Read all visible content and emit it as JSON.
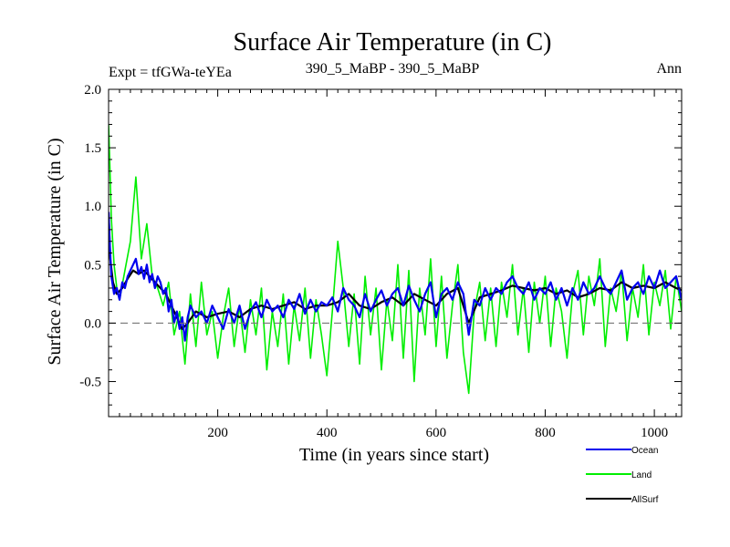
{
  "chart_data": {
    "type": "line",
    "title": "Surface Air Temperature (in C)",
    "subtitle_left": "Expt = tfGWa-teYEa",
    "subtitle_center": "390_5_MaBP - 390_5_MaBP",
    "subtitle_right": "Ann",
    "xlabel": "Time (in years since start)",
    "ylabel": "Surface Air Temperature (in C)",
    "xlim": [
      0,
      1050
    ],
    "ylim": [
      -0.8,
      2.0
    ],
    "xticks": [
      200,
      400,
      600,
      800,
      1000
    ],
    "xtick_labels": [
      "200",
      "400",
      "600",
      "800",
      "1000"
    ],
    "yticks": [
      -0.5,
      0.0,
      0.5,
      1.0,
      1.5,
      2.0
    ],
    "ytick_labels": [
      "-0.5",
      "0.0",
      "0.5",
      "1.0",
      "1.5",
      "2.0"
    ],
    "reference_line": 0.0,
    "grid": false,
    "legend_position": "bottom-right",
    "series": [
      {
        "name": "Land",
        "color": "#00ee00",
        "x": [
          0,
          2,
          5,
          10,
          15,
          20,
          30,
          40,
          50,
          60,
          70,
          80,
          90,
          100,
          110,
          120,
          130,
          140,
          150,
          160,
          170,
          180,
          190,
          200,
          210,
          220,
          230,
          240,
          250,
          260,
          270,
          280,
          290,
          300,
          310,
          320,
          330,
          340,
          350,
          360,
          370,
          380,
          390,
          400,
          410,
          420,
          430,
          440,
          450,
          460,
          470,
          480,
          490,
          500,
          510,
          520,
          530,
          540,
          550,
          560,
          570,
          580,
          590,
          600,
          610,
          620,
          630,
          640,
          650,
          660,
          670,
          680,
          690,
          700,
          710,
          720,
          730,
          740,
          750,
          760,
          770,
          780,
          790,
          800,
          810,
          820,
          830,
          840,
          850,
          860,
          870,
          880,
          890,
          900,
          910,
          920,
          930,
          940,
          950,
          960,
          970,
          980,
          990,
          1000,
          1010,
          1020,
          1030,
          1040,
          1050
        ],
        "values": [
          1.7,
          1.4,
          0.9,
          0.5,
          0.3,
          0.2,
          0.45,
          0.7,
          1.25,
          0.55,
          0.85,
          0.4,
          0.3,
          0.15,
          0.35,
          -0.1,
          0.1,
          -0.35,
          0.25,
          -0.2,
          0.35,
          -0.1,
          0.1,
          -0.3,
          0.05,
          0.3,
          -0.2,
          0.15,
          -0.25,
          0.2,
          -0.1,
          0.3,
          -0.4,
          0.1,
          -0.2,
          0.25,
          -0.35,
          0.15,
          -0.15,
          0.3,
          -0.3,
          0.2,
          -0.1,
          -0.45,
          0.1,
          0.7,
          0.3,
          -0.2,
          0.25,
          -0.35,
          0.4,
          -0.1,
          0.3,
          -0.4,
          0.2,
          -0.15,
          0.5,
          -0.3,
          0.45,
          -0.5,
          0.3,
          -0.1,
          0.55,
          -0.2,
          0.4,
          -0.3,
          0.15,
          0.5,
          -0.25,
          -0.6,
          0.1,
          0.35,
          -0.15,
          0.3,
          -0.2,
          0.35,
          0.05,
          0.5,
          -0.1,
          0.3,
          -0.25,
          0.35,
          0.0,
          0.4,
          -0.2,
          0.3,
          0.1,
          -0.3,
          0.25,
          0.45,
          -0.1,
          0.4,
          0.15,
          0.55,
          -0.2,
          0.3,
          0.1,
          0.45,
          -0.15,
          0.3,
          0.05,
          0.5,
          -0.1,
          0.35,
          0.15,
          0.45,
          -0.05,
          0.4,
          0.1
        ]
      },
      {
        "name": "AllSurf",
        "color": "#000000",
        "x": [
          0,
          3,
          8,
          15,
          25,
          35,
          45,
          55,
          65,
          75,
          85,
          95,
          105,
          115,
          125,
          135,
          145,
          160,
          180,
          200,
          220,
          240,
          260,
          280,
          300,
          320,
          340,
          360,
          380,
          400,
          420,
          440,
          460,
          480,
          500,
          520,
          540,
          560,
          580,
          600,
          620,
          640,
          660,
          680,
          700,
          720,
          740,
          760,
          780,
          800,
          820,
          840,
          860,
          880,
          900,
          920,
          940,
          960,
          980,
          1000,
          1020,
          1040,
          1050
        ],
        "values": [
          0.95,
          0.55,
          0.35,
          0.25,
          0.3,
          0.38,
          0.45,
          0.42,
          0.45,
          0.4,
          0.35,
          0.3,
          0.25,
          0.15,
          0.05,
          -0.05,
          0.0,
          0.1,
          0.05,
          0.08,
          0.1,
          0.05,
          0.12,
          0.15,
          0.12,
          0.15,
          0.18,
          0.12,
          0.15,
          0.15,
          0.18,
          0.25,
          0.15,
          0.12,
          0.18,
          0.22,
          0.15,
          0.25,
          0.2,
          0.15,
          0.25,
          0.3,
          0.0,
          0.22,
          0.25,
          0.28,
          0.32,
          0.3,
          0.28,
          0.3,
          0.25,
          0.28,
          0.22,
          0.25,
          0.3,
          0.28,
          0.35,
          0.3,
          0.32,
          0.3,
          0.35,
          0.3,
          0.28
        ]
      },
      {
        "name": "Ocean",
        "color": "#0000ee",
        "x": [
          0,
          2,
          5,
          10,
          15,
          20,
          25,
          30,
          35,
          40,
          45,
          50,
          55,
          60,
          65,
          70,
          75,
          80,
          85,
          90,
          95,
          100,
          105,
          110,
          115,
          120,
          125,
          130,
          135,
          140,
          145,
          150,
          160,
          170,
          180,
          190,
          200,
          210,
          220,
          230,
          240,
          250,
          260,
          270,
          280,
          290,
          300,
          310,
          320,
          330,
          340,
          350,
          360,
          370,
          380,
          390,
          400,
          410,
          420,
          430,
          440,
          450,
          460,
          470,
          480,
          490,
          500,
          510,
          520,
          530,
          540,
          550,
          560,
          570,
          580,
          590,
          600,
          610,
          620,
          630,
          640,
          650,
          660,
          670,
          680,
          690,
          700,
          710,
          720,
          730,
          740,
          750,
          760,
          770,
          780,
          790,
          800,
          810,
          820,
          830,
          840,
          850,
          860,
          870,
          880,
          890,
          900,
          910,
          920,
          930,
          940,
          950,
          960,
          970,
          980,
          990,
          1000,
          1010,
          1020,
          1030,
          1040,
          1050
        ],
        "values": [
          0.95,
          0.7,
          0.4,
          0.25,
          0.3,
          0.2,
          0.35,
          0.3,
          0.4,
          0.45,
          0.5,
          0.55,
          0.42,
          0.48,
          0.38,
          0.5,
          0.35,
          0.42,
          0.3,
          0.4,
          0.35,
          0.25,
          0.3,
          0.1,
          0.2,
          0.0,
          0.1,
          -0.05,
          0.05,
          -0.15,
          0.05,
          0.15,
          0.05,
          0.1,
          0.0,
          0.15,
          0.05,
          -0.05,
          0.12,
          0.0,
          0.15,
          -0.05,
          0.1,
          0.18,
          0.05,
          0.2,
          0.1,
          0.15,
          0.05,
          0.2,
          0.12,
          0.25,
          0.08,
          0.2,
          0.1,
          0.18,
          0.15,
          0.22,
          0.1,
          0.3,
          0.2,
          0.15,
          0.05,
          0.25,
          0.1,
          0.2,
          0.28,
          0.15,
          0.25,
          0.3,
          0.15,
          0.32,
          0.2,
          0.1,
          0.25,
          0.35,
          0.05,
          0.25,
          0.3,
          0.2,
          0.35,
          0.25,
          -0.1,
          0.2,
          0.15,
          0.3,
          0.2,
          0.3,
          0.25,
          0.35,
          0.4,
          0.3,
          0.25,
          0.35,
          0.2,
          0.3,
          0.25,
          0.35,
          0.2,
          0.3,
          0.15,
          0.3,
          0.2,
          0.35,
          0.25,
          0.3,
          0.4,
          0.3,
          0.25,
          0.35,
          0.45,
          0.2,
          0.3,
          0.35,
          0.25,
          0.4,
          0.3,
          0.45,
          0.3,
          0.35,
          0.4,
          0.2
        ]
      }
    ],
    "legend_order": [
      "Ocean",
      "Land",
      "AllSurf"
    ]
  }
}
